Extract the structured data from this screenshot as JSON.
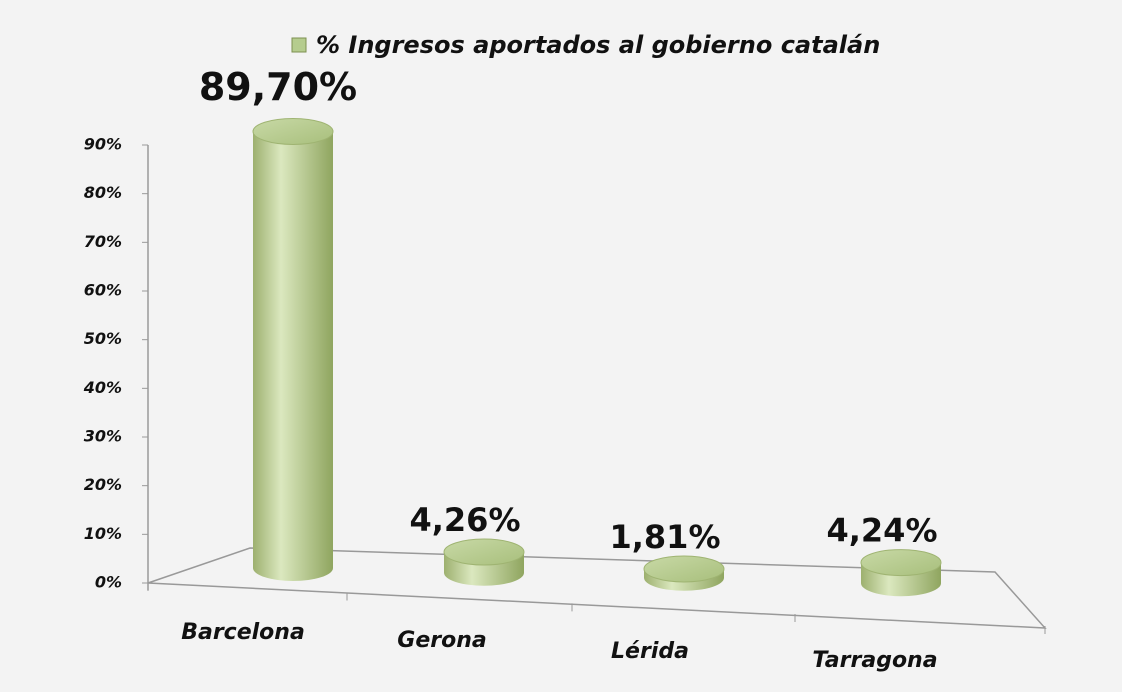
{
  "chart_data": {
    "type": "bar3d",
    "categories": [
      "Barcelona",
      "Gerona",
      "Lérida",
      "Tarragona"
    ],
    "series": [
      {
        "name": "% Ingresos aportados al gobierno catalán",
        "color": "#b5cc8e",
        "values": [
          89.7,
          4.26,
          1.81,
          4.24
        ],
        "value_labels": [
          "89,70%",
          "4,26%",
          "1,81%",
          "4,24%"
        ]
      }
    ],
    "ylim": [
      0,
      90
    ],
    "yticks": [
      {
        "value": 0,
        "label": "0%"
      },
      {
        "value": 10,
        "label": "10%"
      },
      {
        "value": 20,
        "label": "20%"
      },
      {
        "value": 30,
        "label": "30%"
      },
      {
        "value": 40,
        "label": "40%"
      },
      {
        "value": 50,
        "label": "50%"
      },
      {
        "value": 60,
        "label": "60%"
      },
      {
        "value": 70,
        "label": "70%"
      },
      {
        "value": 80,
        "label": "80%"
      },
      {
        "value": 90,
        "label": "90%"
      }
    ],
    "legend": "top"
  }
}
